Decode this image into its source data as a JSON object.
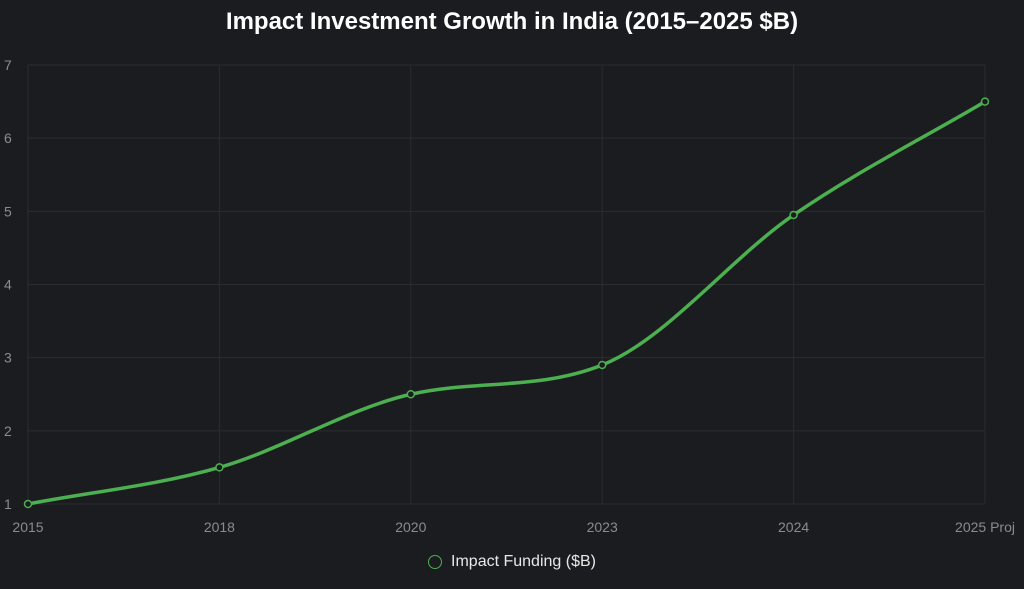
{
  "chart_data": {
    "type": "line",
    "title": "Impact Investment Growth in India (2015–2025 $B)",
    "categories": [
      "2015",
      "2018",
      "2020",
      "2023",
      "2024",
      "2025 Proj"
    ],
    "series": [
      {
        "name": "Impact Funding ($B)",
        "values": [
          1.0,
          1.5,
          2.5,
          2.9,
          4.95,
          6.5
        ],
        "color": "#4caf50"
      }
    ],
    "xlabel": "",
    "ylabel": "",
    "ylim": [
      1,
      7
    ],
    "yticks": [
      1,
      2,
      3,
      4,
      5,
      6,
      7
    ],
    "grid": true,
    "legend_position": "bottom"
  },
  "colors": {
    "background": "#1b1c1f",
    "grid": "#2b2c30",
    "axis_text": "#8a8b8f",
    "title_text": "#ffffff",
    "legend_text": "#e8e8e8"
  }
}
